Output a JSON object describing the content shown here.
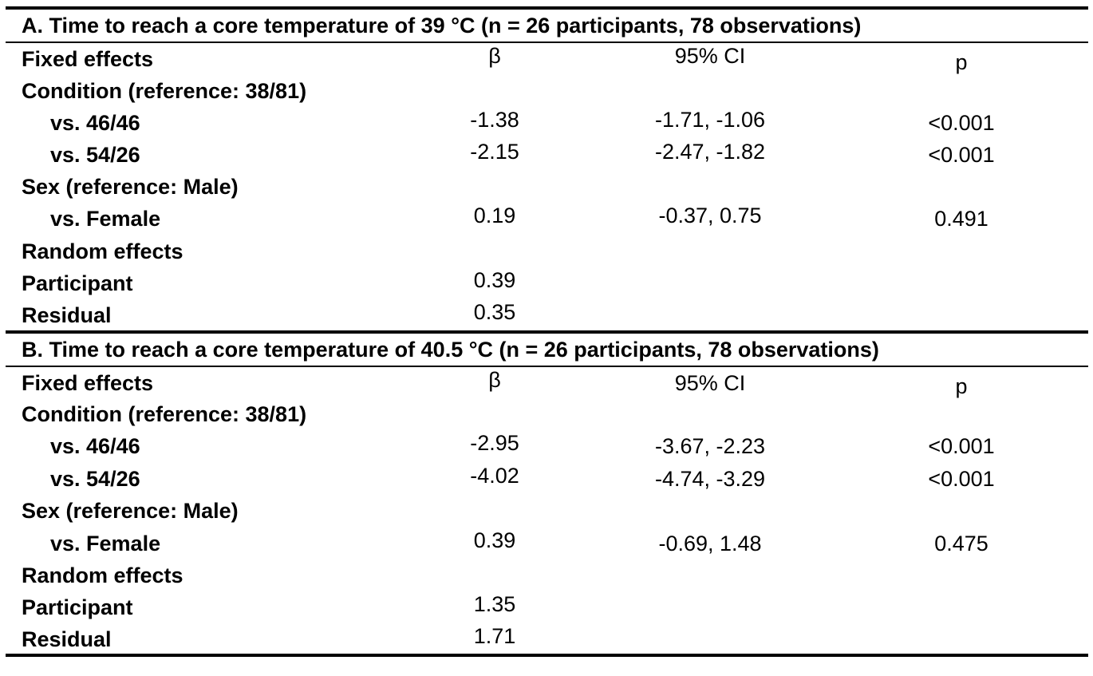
{
  "table": {
    "sections": [
      {
        "title": "A. Time to reach a core temperature of 39 °C (n = 26 participants, 78 observations)",
        "header": {
          "label": "Fixed effects",
          "beta": "β",
          "ci": "95% CI",
          "p": "p"
        },
        "condition_label": "Condition (reference: 38/81)",
        "rows_condition": [
          {
            "label": "vs. 46/46",
            "beta": "-1.38",
            "ci": "-1.71, -1.06",
            "p": "<0.001"
          },
          {
            "label": "vs. 54/26",
            "beta": "-2.15",
            "ci": "-2.47, -1.82",
            "p": "<0.001"
          }
        ],
        "sex_label": "Sex (reference: Male)",
        "rows_sex": [
          {
            "label": "vs. Female",
            "beta": "0.19",
            "ci": "-0.37, 0.75",
            "p": "0.491"
          }
        ],
        "random_label": "Random effects",
        "rows_random": [
          {
            "label": "Participant",
            "beta": "0.39"
          },
          {
            "label": "Residual",
            "beta": "0.35"
          }
        ]
      },
      {
        "title": "B. Time to reach a core temperature of 40.5 °C (n = 26 participants, 78 observations)",
        "header": {
          "label": "Fixed effects",
          "beta": "β",
          "ci": "95% CI",
          "p": "p"
        },
        "condition_label": "Condition (reference: 38/81)",
        "rows_condition": [
          {
            "label": "vs. 46/46",
            "beta": "-2.95",
            "ci": "-3.67, -2.23",
            "p": "<0.001"
          },
          {
            "label": "vs. 54/26",
            "beta": "-4.02",
            "ci": "-4.74, -3.29",
            "p": "<0.001"
          }
        ],
        "sex_label": "Sex (reference: Male)",
        "rows_sex": [
          {
            "label": "vs. Female",
            "beta": "0.39",
            "ci": "-0.69, 1.48",
            "p": "0.475"
          }
        ],
        "random_label": "Random effects",
        "rows_random": [
          {
            "label": "Participant",
            "beta": "1.35"
          },
          {
            "label": "Residual",
            "beta": "1.71"
          }
        ]
      }
    ]
  }
}
